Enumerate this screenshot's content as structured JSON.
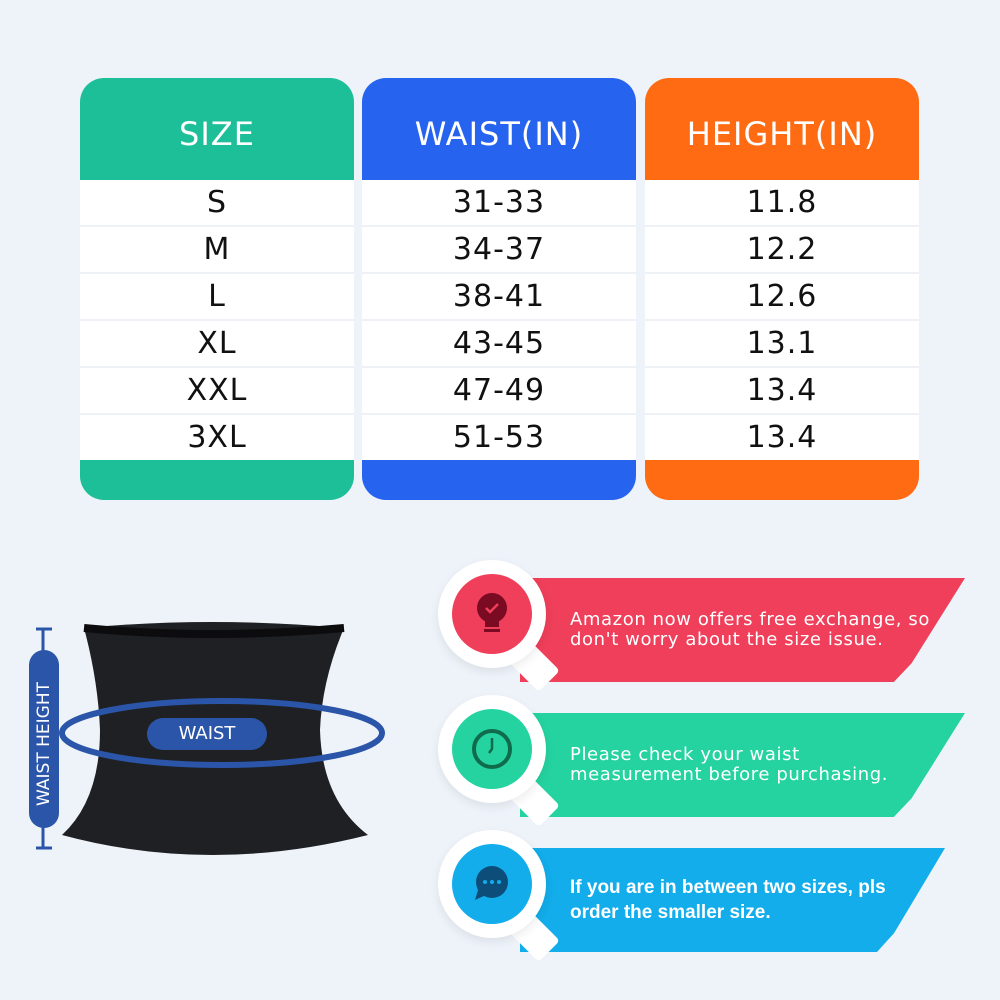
{
  "table": {
    "columns": [
      {
        "header": "SIZE",
        "color": "#1dbf98",
        "values": [
          "S",
          "M",
          "L",
          "XL",
          "XXL",
          "3XL"
        ]
      },
      {
        "header": "WAIST(IN)",
        "color": "#2664ef",
        "values": [
          "31-33",
          "34-37",
          "38-41",
          "43-45",
          "47-49",
          "51-53"
        ]
      },
      {
        "header": "HEIGHT(IN)",
        "color": "#ff6b12",
        "values": [
          "11.8",
          "12.2",
          "12.6",
          "13.1",
          "13.4",
          "13.4"
        ]
      }
    ]
  },
  "diagram": {
    "height_label": "WAIST HEIGHT",
    "waist_label": "WAIST",
    "accent": "#2a55a8"
  },
  "tips": [
    {
      "icon": "lightbulb-check-icon",
      "color": "#ef3f5a",
      "text": "Amazon now offers free exchange, so don't worry about the size issue."
    },
    {
      "icon": "clock-icon",
      "color": "#25d3a0",
      "text": "Please check your waist measurement before purchasing."
    },
    {
      "icon": "chat-bubble-icon",
      "color": "#12adea",
      "text": "If you are in between two sizes, pls order the smaller size."
    }
  ]
}
